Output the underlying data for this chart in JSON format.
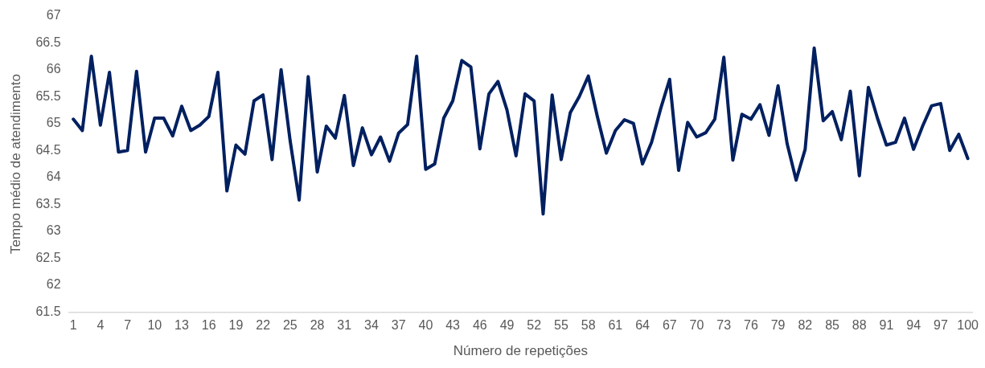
{
  "chart_data": {
    "type": "line",
    "xlabel": "Número de repetições",
    "ylabel": "Tempo médio de atendimento",
    "categories": [
      "1",
      null,
      null,
      "4",
      null,
      null,
      "7",
      null,
      null,
      "10",
      null,
      null,
      "13",
      null,
      null,
      "16",
      null,
      null,
      "19",
      null,
      null,
      "22",
      null,
      null,
      "25",
      null,
      null,
      "28",
      null,
      null,
      "31",
      null,
      null,
      "34",
      null,
      null,
      "37",
      null,
      null,
      "40",
      null,
      null,
      "43",
      null,
      null,
      "46",
      null,
      null,
      "49",
      null,
      null,
      "52",
      null,
      null,
      "55",
      null,
      null,
      "58",
      null,
      null,
      "61",
      null,
      null,
      "64",
      null,
      null,
      "67",
      null,
      null,
      "70",
      null,
      null,
      "73",
      null,
      null,
      "76",
      null,
      null,
      "79",
      null,
      null,
      "82",
      null,
      null,
      "85",
      null,
      null,
      "88",
      null,
      null,
      "91",
      null,
      null,
      "94",
      null,
      null,
      "97",
      null,
      null,
      "100"
    ],
    "series": [
      {
        "color": "#002060",
        "values": [
          65.08,
          64.87,
          66.25,
          64.97,
          65.95,
          64.47,
          64.5,
          65.97,
          64.47,
          65.1,
          65.1,
          64.77,
          65.32,
          64.87,
          64.97,
          65.13,
          65.95,
          63.75,
          64.6,
          64.43,
          65.42,
          65.53,
          64.33,
          66.0,
          64.68,
          63.58,
          65.87,
          64.1,
          64.95,
          64.73,
          65.52,
          64.22,
          64.92,
          64.42,
          64.75,
          64.3,
          64.82,
          64.98,
          66.25,
          64.15,
          64.25,
          65.1,
          65.42,
          66.17,
          66.05,
          64.53,
          65.55,
          65.78,
          65.25,
          64.4,
          65.55,
          65.42,
          63.32,
          65.53,
          64.33,
          65.2,
          65.5,
          65.88,
          65.13,
          64.45,
          64.87,
          65.07,
          65.0,
          64.25,
          64.65,
          65.27,
          65.82,
          64.13,
          65.02,
          64.75,
          64.83,
          65.08,
          66.23,
          64.32,
          65.17,
          65.08,
          65.35,
          64.78,
          65.7,
          64.63,
          63.95,
          64.52,
          66.4,
          65.05,
          65.22,
          64.7,
          65.6,
          64.03,
          65.67,
          65.1,
          64.6,
          64.65,
          65.1,
          64.52,
          64.95,
          65.33,
          65.37,
          64.5,
          64.8,
          64.35
        ]
      }
    ],
    "ylim": [
      61.5,
      67
    ],
    "yticks": [
      61.5,
      62,
      62.5,
      63,
      63.5,
      64,
      64.5,
      65,
      65.5,
      66,
      66.5,
      67
    ]
  }
}
